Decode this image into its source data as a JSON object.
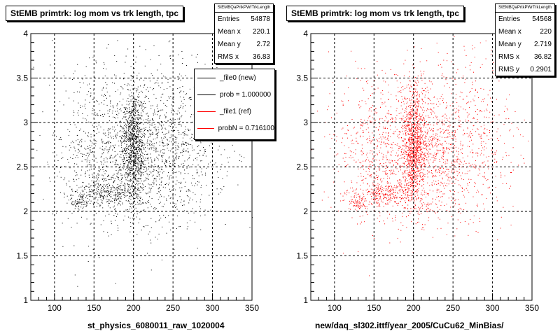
{
  "footer": "",
  "chart_data": [
    {
      "type": "scatter",
      "title": "StEMB primtrk: log mom vs trk length, tpc",
      "xlabel": "st_physics_6080011_raw_1020004",
      "ylabel": "",
      "xlim": [
        70,
        350
      ],
      "ylim": [
        1,
        4
      ],
      "xticks": [
        "100",
        "150",
        "200",
        "250",
        "300",
        "350"
      ],
      "yticks": [
        "1",
        "1.5",
        "2",
        "2.5",
        "3",
        "3.5",
        "4"
      ],
      "grid": true,
      "color": "#000000",
      "stats": {
        "name": "StEMBQaPrtkPWrTrkLength",
        "rows": [
          {
            "label": "Entries",
            "value": "54878"
          },
          {
            "label": "Mean x",
            "value": "220.1"
          },
          {
            "label": "Mean y",
            "value": "2.72"
          },
          {
            "label": "RMS x",
            "value": "36.83"
          }
        ]
      },
      "legend": [
        {
          "text": "_file0 (new)",
          "color": "#000000"
        },
        {
          "text": "prob = 1.000000",
          "color": "#000000"
        },
        {
          "text": "_file1 (ref)",
          "color": "#ff0000"
        },
        {
          "text": "probN = 0.716100",
          "color": "#ff0000"
        }
      ],
      "clusters": [
        {
          "cx": 215,
          "cy": 2.62,
          "sx": 45,
          "sy": 0.38,
          "n": 1300
        },
        {
          "cx": 200,
          "cy": 2.75,
          "sx": 7,
          "sy": 0.33,
          "n": 900
        },
        {
          "cx": 165,
          "cy": 2.2,
          "sx": 20,
          "sy": 0.07,
          "n": 260
        },
        {
          "cx": 130,
          "cy": 2.1,
          "sx": 6,
          "sy": 0.04,
          "n": 70
        },
        {
          "cx": 150,
          "cy": 2.75,
          "sx": 30,
          "sy": 0.45,
          "n": 360
        },
        {
          "cx": 260,
          "cy": 3.05,
          "sx": 40,
          "sy": 0.45,
          "n": 320
        }
      ]
    },
    {
      "type": "scatter",
      "title": "StEMB primtrk: log mom vs trk length, tpc",
      "xlabel": "new/daq_sl302.ittf/year_2005/CuCu62_MinBias/",
      "ylabel": "",
      "xlim": [
        70,
        350
      ],
      "ylim": [
        1,
        4
      ],
      "xticks": [
        "100",
        "150",
        "200",
        "250",
        "300",
        "350"
      ],
      "yticks": [
        "1",
        "1.5",
        "2",
        "2.5",
        "3",
        "3.5",
        "4"
      ],
      "grid": true,
      "color": "#ff0000",
      "stats": {
        "name": "StEMBQaPrtkPWrTrkLength",
        "rows": [
          {
            "label": "Entries",
            "value": "54568"
          },
          {
            "label": "Mean x",
            "value": "220"
          },
          {
            "label": "Mean y",
            "value": "2.719"
          },
          {
            "label": "RMS x",
            "value": "36.82"
          },
          {
            "label": "RMS y",
            "value": "0.2901"
          }
        ]
      },
      "legend": [],
      "clusters": [
        {
          "cx": 215,
          "cy": 2.62,
          "sx": 45,
          "sy": 0.38,
          "n": 1300
        },
        {
          "cx": 200,
          "cy": 2.75,
          "sx": 7,
          "sy": 0.33,
          "n": 900
        },
        {
          "cx": 165,
          "cy": 2.2,
          "sx": 20,
          "sy": 0.07,
          "n": 260
        },
        {
          "cx": 130,
          "cy": 2.1,
          "sx": 6,
          "sy": 0.04,
          "n": 70
        },
        {
          "cx": 150,
          "cy": 2.75,
          "sx": 30,
          "sy": 0.45,
          "n": 360
        },
        {
          "cx": 260,
          "cy": 3.05,
          "sx": 40,
          "sy": 0.45,
          "n": 320
        }
      ]
    }
  ]
}
